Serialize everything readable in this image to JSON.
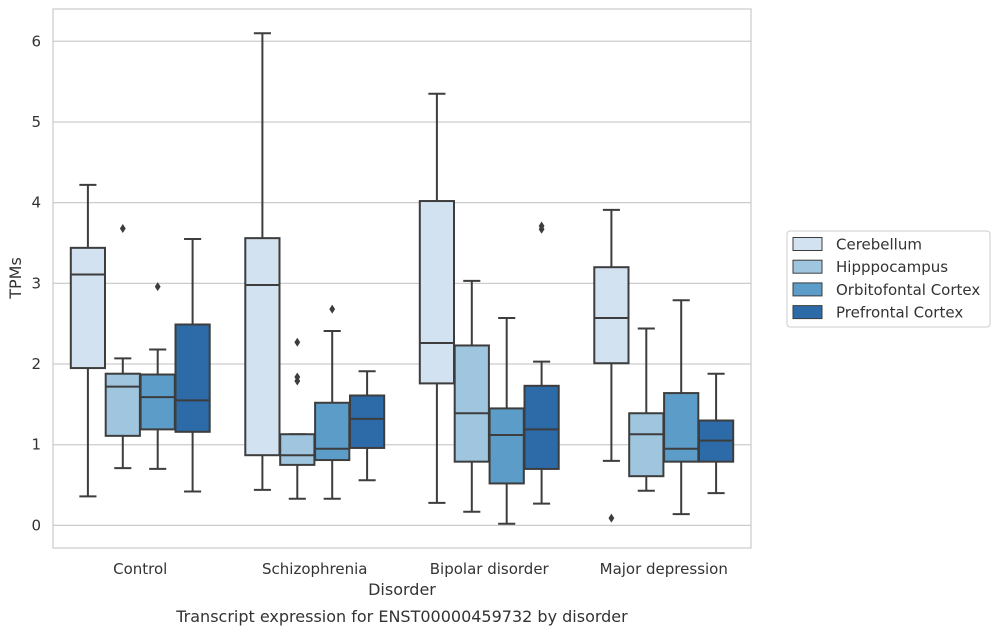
{
  "chart_data": {
    "type": "box",
    "caption": "Transcript expression for ENST00000459732 by disorder",
    "xlabel": "Disorder",
    "ylabel": "TPMs",
    "ylim": [
      -0.28,
      6.4
    ],
    "yticks": [
      0,
      1,
      2,
      3,
      4,
      5,
      6
    ],
    "grid": "horizontal",
    "legend_position": "right",
    "categories": [
      "Control",
      "Schizophrenia",
      "Bipolar disorder",
      "Major depression"
    ],
    "series": [
      {
        "name": "Cerebellum",
        "color": "#d3e2f0",
        "boxes": [
          {
            "whislo": 0.36,
            "q1": 1.95,
            "med": 3.11,
            "q3": 3.44,
            "whishi": 4.22,
            "fliers": []
          },
          {
            "whislo": 0.44,
            "q1": 0.87,
            "med": 2.98,
            "q3": 3.56,
            "whishi": 6.1,
            "fliers": []
          },
          {
            "whislo": 0.28,
            "q1": 1.76,
            "med": 2.26,
            "q3": 4.02,
            "whishi": 5.35,
            "fliers": []
          },
          {
            "whislo": 0.8,
            "q1": 2.01,
            "med": 2.57,
            "q3": 3.2,
            "whishi": 3.91,
            "fliers": [
              0.09
            ]
          }
        ]
      },
      {
        "name": "Hipppocampus",
        "color": "#9fc6de",
        "boxes": [
          {
            "whislo": 0.71,
            "q1": 1.11,
            "med": 1.72,
            "q3": 1.88,
            "whishi": 2.07,
            "fliers": [
              3.68
            ]
          },
          {
            "whislo": 0.33,
            "q1": 0.75,
            "med": 0.87,
            "q3": 1.13,
            "whishi": 1.13,
            "fliers": [
              2.27,
              1.84,
              1.79
            ]
          },
          {
            "whislo": 0.17,
            "q1": 0.79,
            "med": 1.39,
            "q3": 2.23,
            "whishi": 3.03,
            "fliers": []
          },
          {
            "whislo": 0.43,
            "q1": 0.61,
            "med": 1.13,
            "q3": 1.39,
            "whishi": 2.44,
            "fliers": []
          }
        ]
      },
      {
        "name": "Orbitofontal Cortex",
        "color": "#5b9cc8",
        "boxes": [
          {
            "whislo": 0.7,
            "q1": 1.19,
            "med": 1.59,
            "q3": 1.87,
            "whishi": 2.18,
            "fliers": [
              2.96
            ]
          },
          {
            "whislo": 0.33,
            "q1": 0.81,
            "med": 0.95,
            "q3": 1.52,
            "whishi": 2.41,
            "fliers": [
              2.68
            ]
          },
          {
            "whislo": 0.02,
            "q1": 0.52,
            "med": 1.12,
            "q3": 1.45,
            "whishi": 2.57,
            "fliers": []
          },
          {
            "whislo": 0.14,
            "q1": 0.79,
            "med": 0.95,
            "q3": 1.64,
            "whishi": 2.79,
            "fliers": []
          }
        ]
      },
      {
        "name": "Prefrontal Cortex",
        "color": "#2c6aa8",
        "boxes": [
          {
            "whislo": 0.42,
            "q1": 1.16,
            "med": 1.55,
            "q3": 2.49,
            "whishi": 3.55,
            "fliers": []
          },
          {
            "whislo": 0.56,
            "q1": 0.96,
            "med": 1.32,
            "q3": 1.61,
            "whishi": 1.91,
            "fliers": []
          },
          {
            "whislo": 0.27,
            "q1": 0.7,
            "med": 1.19,
            "q3": 1.73,
            "whishi": 2.03,
            "fliers": [
              3.71,
              3.67
            ]
          },
          {
            "whislo": 0.4,
            "q1": 0.79,
            "med": 1.05,
            "q3": 1.3,
            "whishi": 1.88,
            "fliers": []
          }
        ]
      }
    ]
  }
}
